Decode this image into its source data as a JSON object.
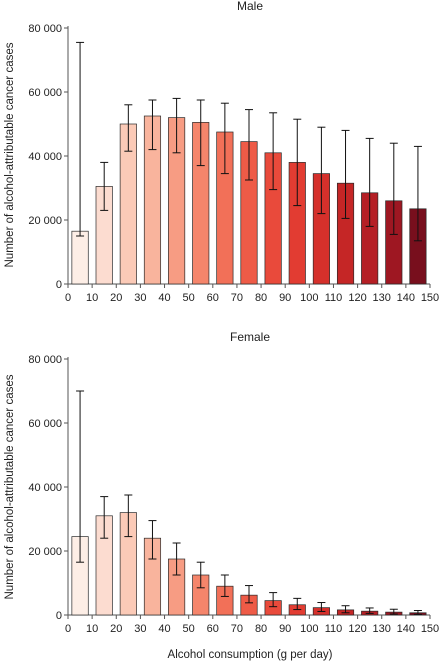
{
  "chart_data": [
    {
      "type": "bar",
      "title": "Male",
      "ylabel": "Number of alcohol-attributable cancer cases",
      "xlabel": "",
      "xlim": [
        0,
        150
      ],
      "ylim": [
        0,
        80000
      ],
      "xticks": [
        "0",
        "10",
        "20",
        "30",
        "40",
        "50",
        "60",
        "70",
        "80",
        "90",
        "100",
        "110",
        "120",
        "130",
        "140",
        "150"
      ],
      "yticks": [
        "0",
        "20 000",
        "40 000",
        "60 000",
        "80 000"
      ],
      "yticks_values": [
        0,
        20000,
        40000,
        60000,
        80000
      ],
      "bar_x": [
        5,
        15,
        25,
        35,
        45,
        55,
        65,
        75,
        85,
        95,
        105,
        115,
        125,
        135,
        145
      ],
      "values": [
        16500,
        30500,
        50000,
        52500,
        52000,
        50500,
        47500,
        44500,
        41000,
        38000,
        34500,
        31500,
        28500,
        26000,
        23500
      ],
      "error_low": [
        15000,
        23000,
        41500,
        42000,
        41000,
        37000,
        34500,
        32500,
        29500,
        24500,
        22000,
        20500,
        18000,
        15500,
        13500
      ],
      "error_high": [
        75500,
        38000,
        56000,
        57500,
        58000,
        57500,
        56500,
        54500,
        53500,
        51500,
        49000,
        48000,
        45500,
        44000,
        43000
      ],
      "colors": [
        "#fdeee6",
        "#fcdcd0",
        "#fbcab7",
        "#f9b49d",
        "#f79c83",
        "#f5856b",
        "#f27058",
        "#ee5b47",
        "#e94a3b",
        "#e23c32",
        "#d5302b",
        "#c52626",
        "#b51f25",
        "#9e1722",
        "#780f1d"
      ]
    },
    {
      "type": "bar",
      "title": "Female",
      "ylabel": "Number of alcohol-attributable cancer cases",
      "xlabel": "Alcohol consumption (g per day)",
      "xlim": [
        0,
        150
      ],
      "ylim": [
        0,
        80000
      ],
      "xticks": [
        "0",
        "10",
        "20",
        "30",
        "40",
        "50",
        "60",
        "70",
        "80",
        "90",
        "100",
        "110",
        "120",
        "130",
        "140",
        "150"
      ],
      "yticks": [
        "0",
        "20 000",
        "40 000",
        "60 000",
        "80 000"
      ],
      "yticks_values": [
        0,
        20000,
        40000,
        60000,
        80000
      ],
      "bar_x": [
        5,
        15,
        25,
        35,
        45,
        55,
        65,
        75,
        85,
        95,
        105,
        115,
        125,
        135,
        145
      ],
      "values": [
        24500,
        31000,
        32000,
        24000,
        17500,
        12500,
        9000,
        6200,
        4500,
        3200,
        2300,
        1600,
        1200,
        900,
        700
      ],
      "error_low": [
        16500,
        24000,
        24500,
        17500,
        12500,
        8500,
        5800,
        3800,
        2600,
        1700,
        1100,
        700,
        500,
        300,
        200
      ],
      "error_high": [
        70000,
        37000,
        37500,
        29500,
        22500,
        16500,
        12500,
        9200,
        7000,
        5200,
        3900,
        2900,
        2200,
        1800,
        1400
      ],
      "colors": [
        "#fdeee6",
        "#fcdcd0",
        "#fbcab7",
        "#f9b49d",
        "#f79c83",
        "#f5856b",
        "#f27058",
        "#ee5b47",
        "#e94a3b",
        "#e23c32",
        "#d5302b",
        "#c52626",
        "#b51f25",
        "#9e1722",
        "#780f1d"
      ]
    }
  ]
}
